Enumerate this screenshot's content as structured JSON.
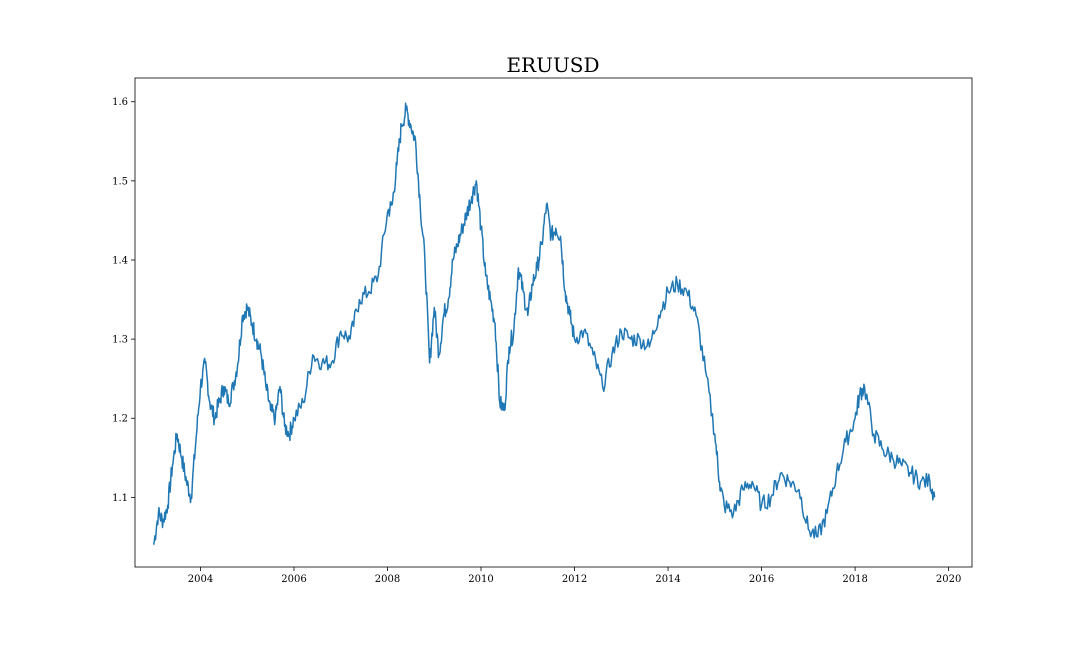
{
  "chart_data": {
    "type": "line",
    "title": "ERUUSD",
    "xlabel": "",
    "ylabel": "",
    "xlim": [
      2002.6,
      2020.5
    ],
    "ylim": [
      1.012,
      1.63
    ],
    "xticks": [
      2004,
      2006,
      2008,
      2010,
      2012,
      2014,
      2016,
      2018,
      2020
    ],
    "xtick_labels": [
      "2004",
      "2006",
      "2008",
      "2010",
      "2012",
      "2014",
      "2016",
      "2018",
      "2020"
    ],
    "yticks": [
      1.1,
      1.2,
      1.3,
      1.4,
      1.5,
      1.6
    ],
    "ytick_labels": [
      "1.1",
      "1.2",
      "1.3",
      "1.4",
      "1.5",
      "1.6"
    ],
    "grid": false,
    "line_color": "#1f77b4",
    "series": [
      {
        "x": [
          2003.0,
          2003.1,
          2003.2,
          2003.3,
          2003.4,
          2003.5,
          2003.6,
          2003.7,
          2003.8,
          2003.9,
          2004.0,
          2004.1,
          2004.2,
          2004.3,
          2004.4,
          2004.5,
          2004.6,
          2004.7,
          2004.8,
          2004.9,
          2005.0,
          2005.1,
          2005.2,
          2005.3,
          2005.4,
          2005.5,
          2005.6,
          2005.7,
          2005.8,
          2005.9,
          2006.0,
          2006.2,
          2006.4,
          2006.6,
          2006.8,
          2007.0,
          2007.2,
          2007.4,
          2007.6,
          2007.8,
          2008.0,
          2008.1,
          2008.2,
          2008.3,
          2008.4,
          2008.5,
          2008.6,
          2008.7,
          2008.8,
          2008.9,
          2009.0,
          2009.1,
          2009.2,
          2009.3,
          2009.4,
          2009.5,
          2009.6,
          2009.7,
          2009.8,
          2009.9,
          2010.0,
          2010.1,
          2010.2,
          2010.3,
          2010.4,
          2010.5,
          2010.6,
          2010.7,
          2010.8,
          2010.9,
          2011.0,
          2011.1,
          2011.2,
          2011.3,
          2011.4,
          2011.5,
          2011.6,
          2011.7,
          2011.8,
          2011.9,
          2012.0,
          2012.2,
          2012.4,
          2012.6,
          2012.8,
          2013.0,
          2013.2,
          2013.4,
          2013.6,
          2013.8,
          2014.0,
          2014.2,
          2014.4,
          2014.6,
          2014.8,
          2015.0,
          2015.1,
          2015.2,
          2015.4,
          2015.6,
          2015.8,
          2016.0,
          2016.2,
          2016.4,
          2016.6,
          2016.8,
          2017.0,
          2017.2,
          2017.4,
          2017.6,
          2017.8,
          2018.0,
          2018.1,
          2018.2,
          2018.4,
          2018.6,
          2018.8,
          2019.0,
          2019.2,
          2019.4,
          2019.6,
          2019.7
        ],
        "y": [
          1.04,
          1.08,
          1.07,
          1.09,
          1.14,
          1.18,
          1.15,
          1.12,
          1.1,
          1.17,
          1.24,
          1.27,
          1.22,
          1.2,
          1.22,
          1.24,
          1.22,
          1.24,
          1.27,
          1.33,
          1.34,
          1.32,
          1.3,
          1.28,
          1.24,
          1.21,
          1.2,
          1.24,
          1.19,
          1.18,
          1.2,
          1.22,
          1.28,
          1.27,
          1.27,
          1.31,
          1.3,
          1.35,
          1.36,
          1.38,
          1.46,
          1.47,
          1.52,
          1.57,
          1.59,
          1.57,
          1.55,
          1.47,
          1.4,
          1.27,
          1.34,
          1.28,
          1.33,
          1.35,
          1.4,
          1.42,
          1.44,
          1.46,
          1.48,
          1.5,
          1.44,
          1.38,
          1.35,
          1.32,
          1.22,
          1.21,
          1.29,
          1.31,
          1.39,
          1.36,
          1.33,
          1.37,
          1.39,
          1.42,
          1.47,
          1.43,
          1.44,
          1.43,
          1.36,
          1.33,
          1.3,
          1.31,
          1.28,
          1.24,
          1.28,
          1.31,
          1.3,
          1.3,
          1.29,
          1.33,
          1.36,
          1.37,
          1.36,
          1.33,
          1.26,
          1.18,
          1.12,
          1.09,
          1.08,
          1.11,
          1.12,
          1.09,
          1.1,
          1.13,
          1.12,
          1.11,
          1.06,
          1.05,
          1.08,
          1.13,
          1.17,
          1.2,
          1.23,
          1.24,
          1.18,
          1.16,
          1.15,
          1.14,
          1.13,
          1.12,
          1.12,
          1.1
        ]
      }
    ]
  }
}
